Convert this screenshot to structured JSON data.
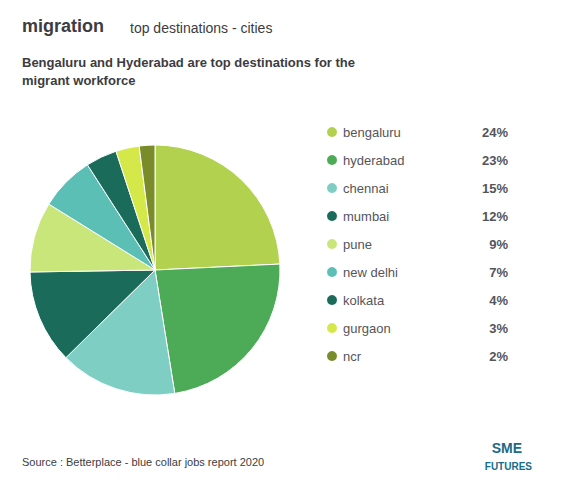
{
  "chart_data": {
    "type": "pie",
    "title": "migration",
    "subtitle": "top destinations - cities",
    "annotations": [
      "Bengaluru and Hyderabad are top destinations for the\nmigrant workforce",
      "Source : Betterplace - blue collar jobs report 2020",
      "SME",
      "FUTURES"
    ],
    "categories": [
      "bengaluru",
      "hyderabad",
      "chennai",
      "mumbai",
      "pune",
      "new delhi",
      "kolkata",
      "gurgaon",
      "ncr"
    ],
    "values": [
      24,
      23,
      15,
      12,
      9,
      7,
      4,
      3,
      2
    ],
    "value_labels": [
      "24%",
      "23%",
      "15%",
      "12%",
      "9%",
      "7%",
      "4%",
      "3%",
      "2%"
    ],
    "colors": [
      "#b2d24f",
      "#4daa57",
      "#7ecec4",
      "#1a6b5a",
      "#c8e67a",
      "#5bbfb5",
      "#1a6b5a",
      "#d4e84a",
      "#7a8c2a"
    ],
    "legend": "right"
  }
}
